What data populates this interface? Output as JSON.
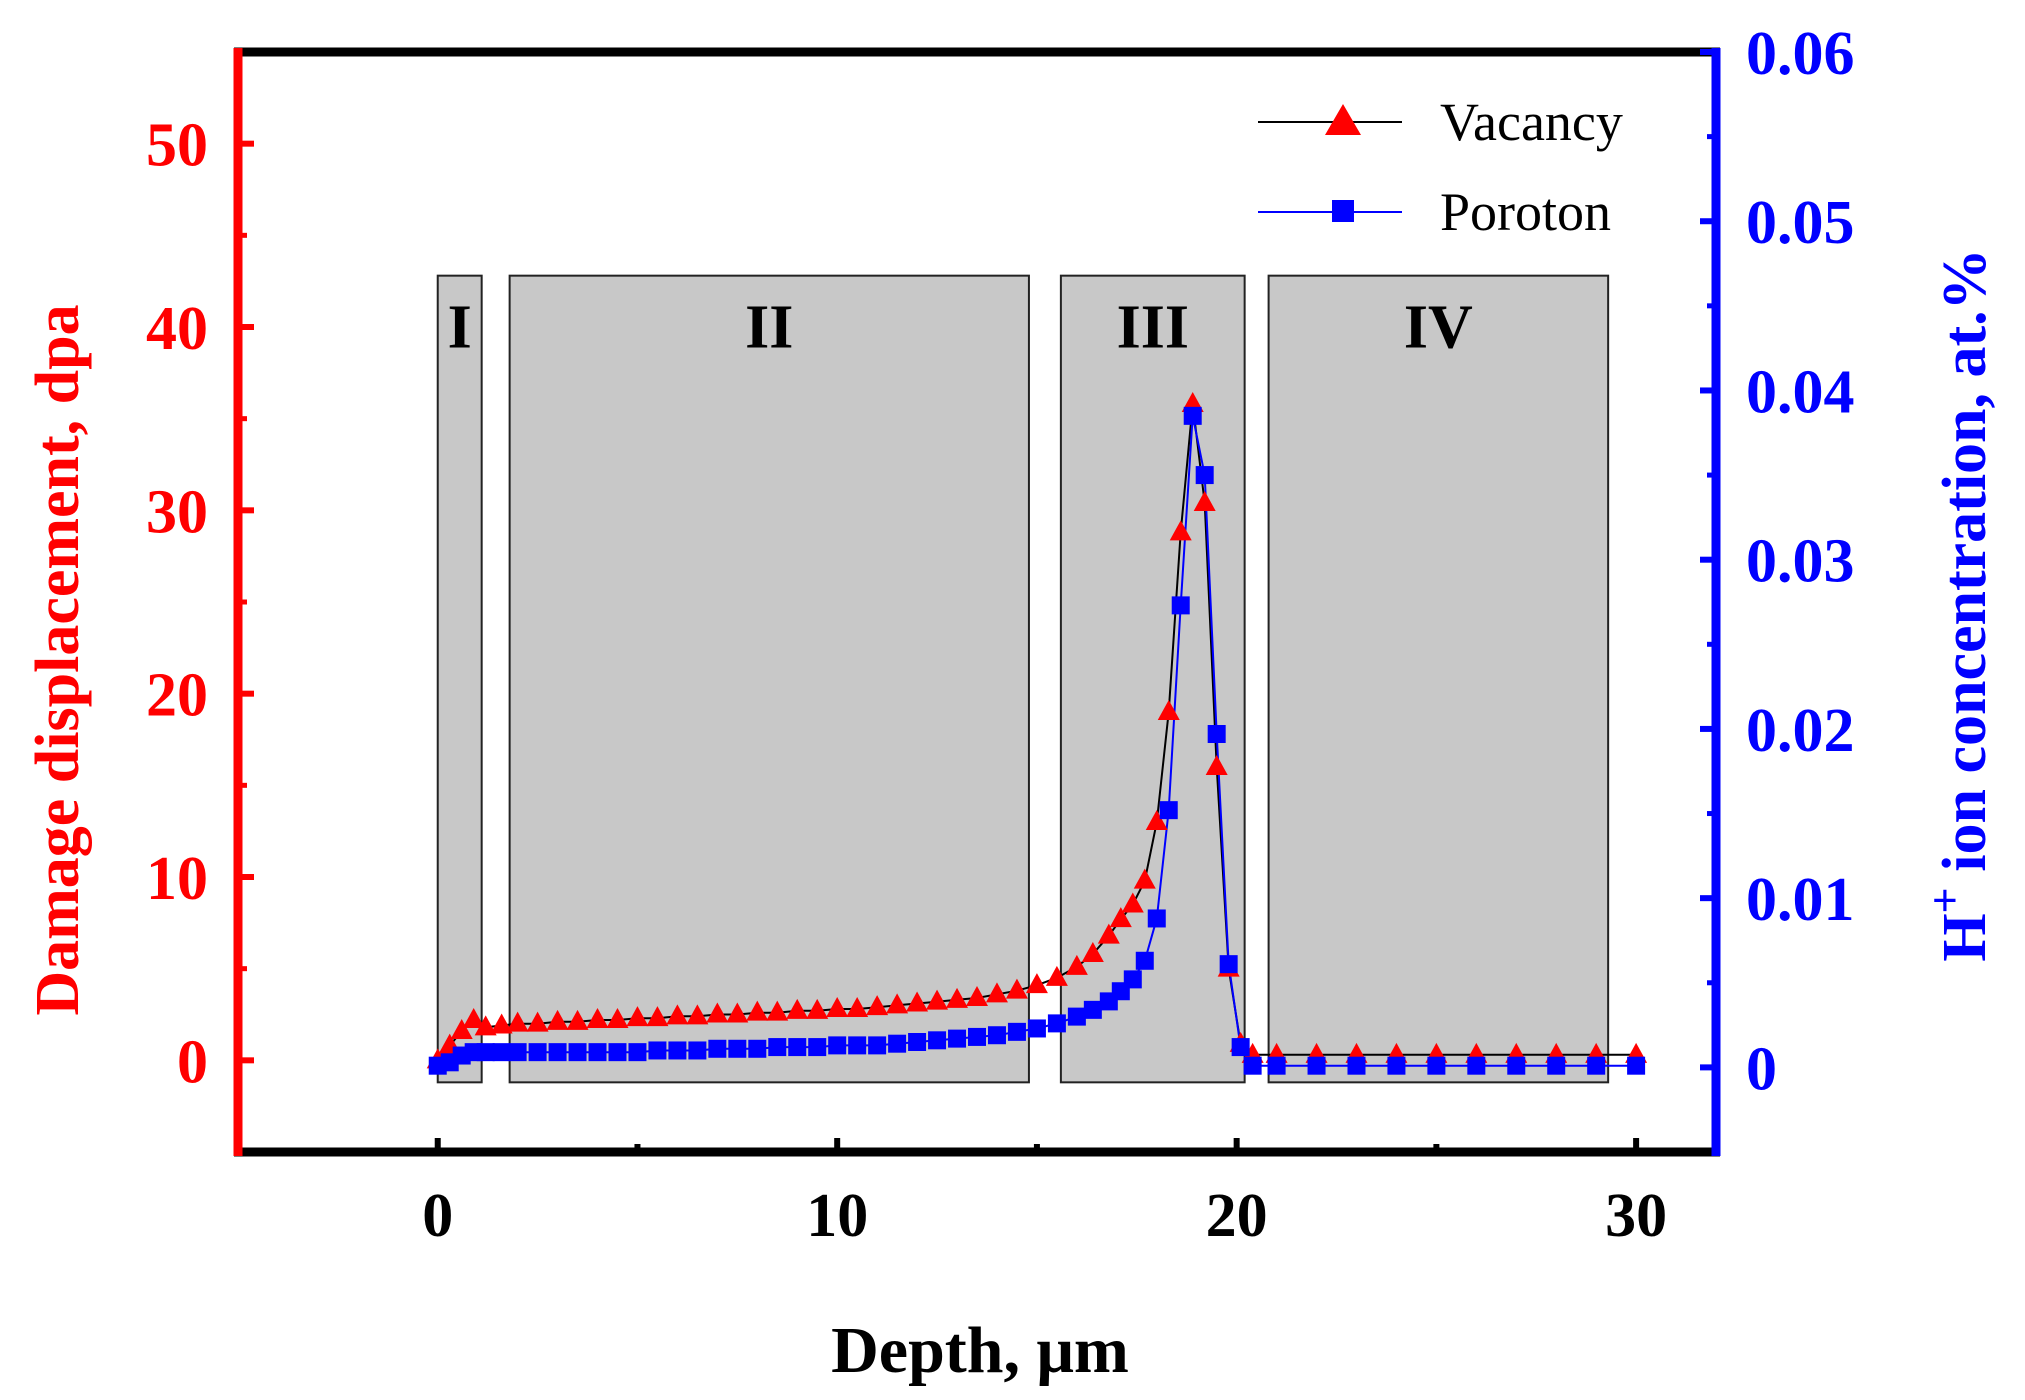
{
  "chart_data": {
    "type": "line",
    "title": "",
    "xlabel": "Depth, μm",
    "ylabel_left": "Damage displacement, dpa",
    "ylabel_right_prefix": "H",
    "ylabel_right_sup": "+",
    "ylabel_right_suffix": " ion concentration, at.%",
    "xlim": [
      -5,
      32
    ],
    "ylim_left": [
      -5,
      55
    ],
    "ylim_right": [
      -0.005,
      0.06
    ],
    "x_ticks": [
      0,
      10,
      20,
      30
    ],
    "x_tick_labels": [
      "0",
      "10",
      "20",
      "30"
    ],
    "y_left_ticks": [
      0,
      10,
      20,
      30,
      40,
      50
    ],
    "y_left_tick_labels": [
      "0",
      "10",
      "20",
      "30",
      "40",
      "50"
    ],
    "y_right_ticks": [
      0,
      0.01,
      0.02,
      0.03,
      0.04,
      0.05,
      0.06
    ],
    "y_right_tick_labels": [
      "0",
      "0.01",
      "0.02",
      "0.03",
      "0.04",
      "0.05",
      "0.06"
    ],
    "colors": {
      "left_axis": "#ff0000",
      "right_axis": "#0000ff",
      "frame": "#000000",
      "region_fill": "#c8c8c8"
    },
    "regions": [
      {
        "label": "I",
        "x0": 0,
        "x1": 1.1
      },
      {
        "label": "II",
        "x0": 1.8,
        "x1": 14.8
      },
      {
        "label": "III",
        "x0": 15.6,
        "x1": 20.2
      },
      {
        "label": "IV",
        "x0": 20.8,
        "x1": 29.3
      }
    ],
    "region_y_range": [
      -1.2,
      42.8
    ],
    "legend_position": "top-right",
    "series": [
      {
        "name": "Vacancy",
        "axis": "left",
        "marker": "triangle",
        "color": "#ff0000",
        "line_color": "#000000",
        "x": [
          0,
          0.3,
          0.6,
          0.9,
          1.2,
          1.6,
          2.0,
          2.5,
          3.0,
          3.5,
          4.0,
          4.5,
          5.0,
          5.5,
          6.0,
          6.5,
          7.0,
          7.5,
          8.0,
          8.5,
          9.0,
          9.5,
          10.0,
          10.5,
          11.0,
          11.5,
          12.0,
          12.5,
          13.0,
          13.5,
          14.0,
          14.5,
          15.0,
          15.5,
          16.0,
          16.4,
          16.8,
          17.1,
          17.4,
          17.7,
          18.0,
          18.3,
          18.6,
          18.9,
          19.2,
          19.5,
          19.8,
          20.1,
          20.4,
          21.0,
          22.0,
          23.0,
          24.0,
          25.0,
          26.0,
          27.0,
          28.0,
          29.0,
          30.0
        ],
        "y": [
          0,
          0.8,
          1.6,
          2.2,
          1.8,
          1.9,
          2.0,
          2.0,
          2.1,
          2.1,
          2.2,
          2.2,
          2.3,
          2.3,
          2.4,
          2.4,
          2.5,
          2.5,
          2.6,
          2.6,
          2.7,
          2.7,
          2.8,
          2.8,
          2.9,
          3.0,
          3.1,
          3.2,
          3.3,
          3.4,
          3.6,
          3.8,
          4.1,
          4.5,
          5.1,
          5.8,
          6.8,
          7.7,
          8.5,
          9.8,
          13.0,
          19.0,
          28.8,
          35.8,
          30.4,
          16.0,
          5.0,
          0.9,
          0.3,
          0.3,
          0.3,
          0.3,
          0.3,
          0.3,
          0.3,
          0.3,
          0.3,
          0.3,
          0.3
        ]
      },
      {
        "name": "Poroton",
        "axis": "right",
        "marker": "square",
        "color": "#0000ff",
        "line_color": "#0000ff",
        "x": [
          0,
          0.3,
          0.6,
          0.9,
          1.2,
          1.6,
          2.0,
          2.5,
          3.0,
          3.5,
          4.0,
          4.5,
          5.0,
          5.5,
          6.0,
          6.5,
          7.0,
          7.5,
          8.0,
          8.5,
          9.0,
          9.5,
          10.0,
          10.5,
          11.0,
          11.5,
          12.0,
          12.5,
          13.0,
          13.5,
          14.0,
          14.5,
          15.0,
          15.5,
          16.0,
          16.4,
          16.8,
          17.1,
          17.4,
          17.7,
          18.0,
          18.3,
          18.6,
          18.9,
          19.2,
          19.5,
          19.8,
          20.1,
          20.4,
          21.0,
          22.0,
          23.0,
          24.0,
          25.0,
          26.0,
          27.0,
          28.0,
          29.0,
          30.0
        ],
        "y": [
          0.0001,
          0.0003,
          0.0007,
          0.0009,
          0.0009,
          0.0009,
          0.0009,
          0.0009,
          0.0009,
          0.0009,
          0.0009,
          0.0009,
          0.0009,
          0.001,
          0.001,
          0.001,
          0.0011,
          0.0011,
          0.0011,
          0.0012,
          0.0012,
          0.0012,
          0.0013,
          0.0013,
          0.0013,
          0.0014,
          0.0015,
          0.0016,
          0.0017,
          0.0018,
          0.0019,
          0.0021,
          0.0023,
          0.0026,
          0.003,
          0.0034,
          0.0039,
          0.0045,
          0.0052,
          0.0063,
          0.0088,
          0.0152,
          0.0273,
          0.0385,
          0.035,
          0.0197,
          0.0061,
          0.0012,
          0.0001,
          0.0001,
          0.0001,
          0.0001,
          0.0001,
          0.0001,
          0.0001,
          0.0001,
          0.0001,
          0.0001,
          0.0001
        ]
      }
    ]
  }
}
